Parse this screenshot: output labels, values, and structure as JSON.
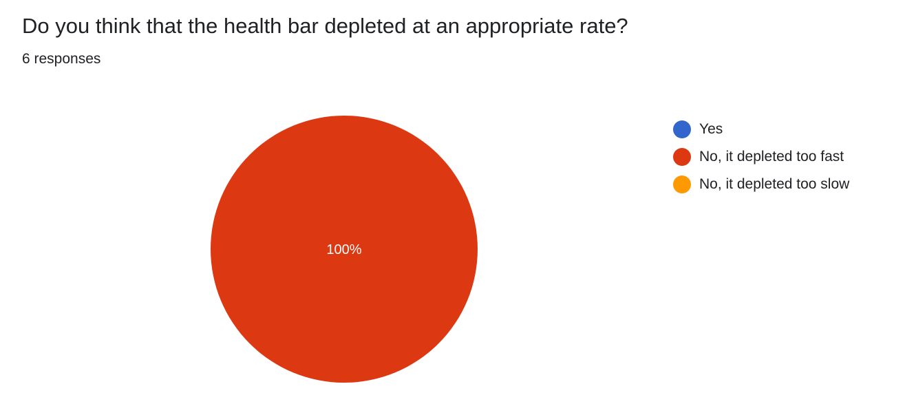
{
  "header": {
    "title": "Do you think that the health bar depleted at an appropriate rate?",
    "responses": "6 responses"
  },
  "chart_data": {
    "type": "pie",
    "categories": [
      "Yes",
      "No, it depleted too fast",
      "No, it depleted too slow"
    ],
    "values": [
      0,
      6,
      0
    ],
    "percent_labels": [
      "",
      "100%",
      ""
    ],
    "colors": [
      "#3366cc",
      "#dc3912",
      "#ff9900"
    ],
    "legend_position": "right"
  }
}
